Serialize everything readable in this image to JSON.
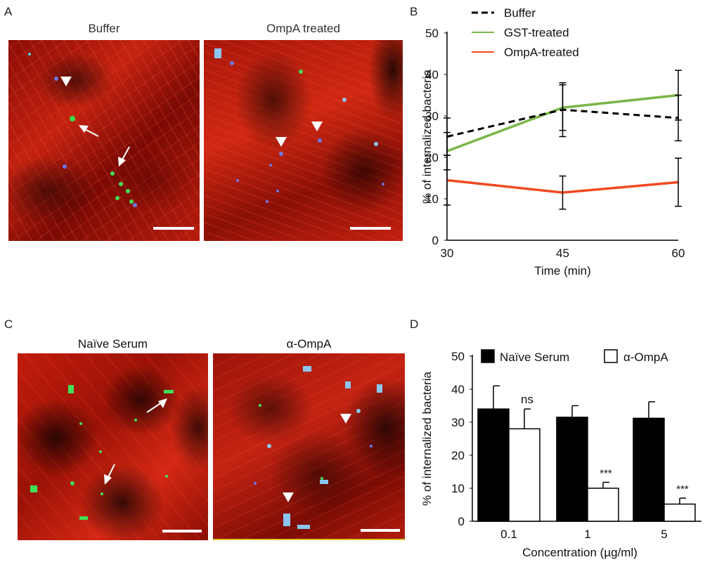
{
  "panels": {
    "A": {
      "letter": "A",
      "left_title": "Buffer",
      "right_title": "OmpA treated"
    },
    "B": {
      "letter": "B"
    },
    "C": {
      "letter": "C",
      "left_title": "Naïve Serum",
      "right_title": "α-OmpA"
    },
    "D": {
      "letter": "D"
    }
  },
  "chart_data": [
    {
      "type": "line",
      "title": "",
      "xlabel": "Time (min)",
      "ylabel": "% of internalized bacteria",
      "x": [
        30,
        45,
        60
      ],
      "xticks": [
        "30",
        "45",
        "60"
      ],
      "ylim": [
        0,
        50
      ],
      "yticks": [
        "0",
        "10",
        "20",
        "30",
        "40",
        "50"
      ],
      "grid": false,
      "legend_position": "top",
      "series": [
        {
          "name": "Buffer",
          "style": "dashed",
          "color": "#000000",
          "values": [
            25,
            31.5,
            29.5
          ],
          "err": [
            4.5,
            6.5,
            5.5
          ]
        },
        {
          "name": "GST-treated",
          "style": "solid",
          "color": "#7ab648",
          "values": [
            21.5,
            32,
            35
          ],
          "err": [
            4.5,
            5.5,
            6
          ]
        },
        {
          "name": "OmpA-treated",
          "style": "solid",
          "color": "#f04a23",
          "values": [
            14.5,
            11.5,
            14
          ],
          "err": [
            6,
            4,
            5.8
          ]
        }
      ]
    },
    {
      "type": "bar",
      "title": "",
      "xlabel": "Concentration (µg/ml)",
      "ylabel": "% of internalized bacteria",
      "categories": [
        "0.1",
        "1",
        "5"
      ],
      "ylim": [
        0,
        50
      ],
      "yticks": [
        "0",
        "10",
        "20",
        "30",
        "40",
        "50"
      ],
      "grid": false,
      "legend_position": "top",
      "series": [
        {
          "name": "Naïve Serum",
          "fill": "#000000",
          "values": [
            34,
            31.5,
            31.2
          ],
          "err": [
            7,
            3.5,
            5
          ]
        },
        {
          "name": "α-OmpA",
          "fill": "#ffffff",
          "values": [
            28,
            10,
            5.2
          ],
          "err": [
            6,
            1.8,
            1.8
          ]
        }
      ],
      "annotations": [
        "ns",
        "***",
        "***"
      ]
    }
  ]
}
